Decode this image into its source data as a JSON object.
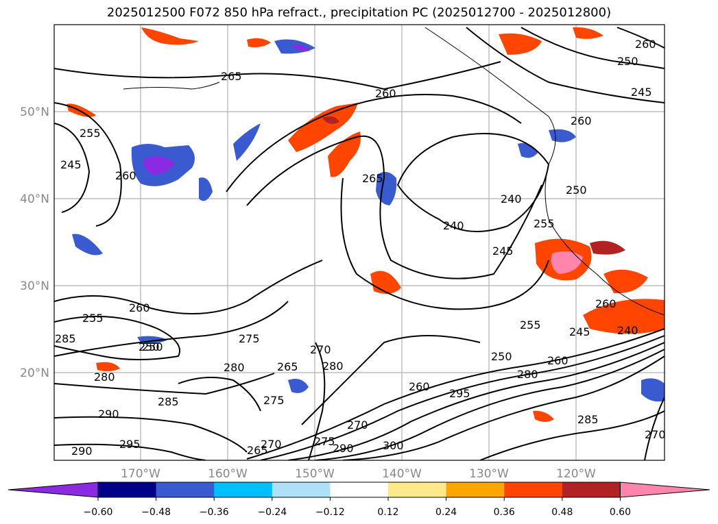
{
  "title": "2025012500 F072 850 hPa refract., precipitation PC (2025012700 - 2025012800)",
  "lat_labels": [
    "50°N",
    "40°N",
    "30°N",
    "20°N"
  ],
  "lon_labels": [
    "170°W",
    "160°W",
    "150°W",
    "140°W",
    "130°W",
    "120°W"
  ],
  "contour_labels": [
    "265",
    "260",
    "255",
    "245",
    "260",
    "250",
    "255",
    "285",
    "260",
    "250",
    "280",
    "275",
    "285",
    "280",
    "290",
    "295",
    "290",
    "265",
    "270",
    "275",
    "265",
    "270",
    "280",
    "270",
    "275",
    "290",
    "300",
    "265",
    "240",
    "240",
    "245",
    "255",
    "250",
    "260",
    "255",
    "245",
    "240",
    "250",
    "260",
    "280",
    "295",
    "285",
    "270",
    "260",
    "260",
    "245",
    "250",
    "260"
  ],
  "colorbar": {
    "colors": [
      "#8a2be2",
      "#00008b",
      "#3a5bd0",
      "#00bfff",
      "#aee0f8",
      "#ffffff",
      "#fde98b",
      "#ffa500",
      "#ff4500",
      "#b22222",
      "#ff85ad"
    ],
    "ticks": [
      "−0.60",
      "−0.48",
      "−0.36",
      "−0.24",
      "−0.12",
      "0.12",
      "0.24",
      "0.36",
      "0.48",
      "0.60"
    ]
  },
  "icons": {
    "coastline": "coastline-shape",
    "contour": "isoline"
  }
}
